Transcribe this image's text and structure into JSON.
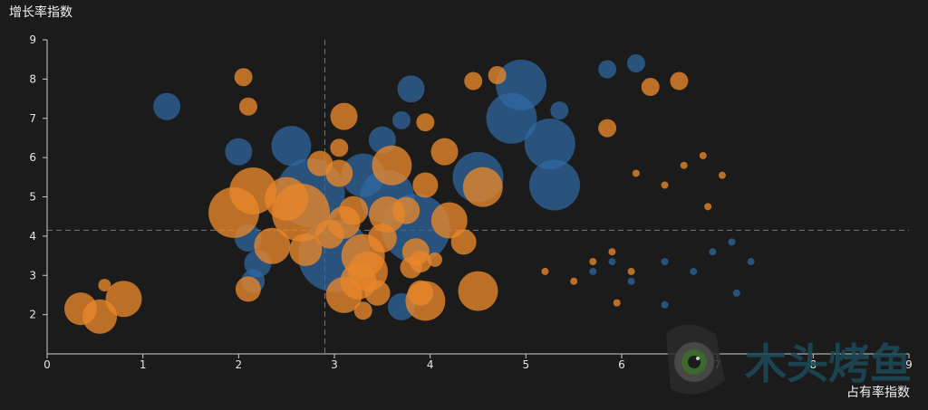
{
  "colors": {
    "background": "#1b1b1b",
    "axis": "#cccccc",
    "ref_line": "#777777",
    "blue": "#2f6aa3",
    "orange": "#e8862a"
  },
  "watermark": {
    "text": "木头烤鱼",
    "icon": "camera-logo-icon"
  },
  "chart_data": {
    "type": "scatter",
    "xlabel": "占有率指数",
    "ylabel": "增长率指数",
    "xlim": [
      0,
      9
    ],
    "ylim": [
      1,
      9
    ],
    "xticks": [
      0,
      1,
      2,
      3,
      4,
      5,
      6,
      7,
      8,
      9
    ],
    "yticks": [
      2,
      3,
      4,
      5,
      6,
      7,
      8,
      9
    ],
    "ref_x": 2.9,
    "ref_y": 4.15,
    "series": [
      {
        "color": "#2f6aa3",
        "points": [
          {
            "x": 1.25,
            "y": 7.3,
            "s": 15
          },
          {
            "x": 2.0,
            "y": 6.15,
            "s": 15
          },
          {
            "x": 2.55,
            "y": 6.3,
            "s": 22
          },
          {
            "x": 2.75,
            "y": 5.1,
            "s": 38
          },
          {
            "x": 3.0,
            "y": 3.5,
            "s": 40
          },
          {
            "x": 3.3,
            "y": 5.55,
            "s": 24
          },
          {
            "x": 3.55,
            "y": 5.0,
            "s": 30
          },
          {
            "x": 3.5,
            "y": 6.45,
            "s": 15
          },
          {
            "x": 3.8,
            "y": 7.75,
            "s": 15
          },
          {
            "x": 3.7,
            "y": 6.95,
            "s": 10
          },
          {
            "x": 3.85,
            "y": 4.2,
            "s": 38
          },
          {
            "x": 3.7,
            "y": 2.2,
            "s": 15
          },
          {
            "x": 2.1,
            "y": 3.95,
            "s": 15
          },
          {
            "x": 2.2,
            "y": 3.3,
            "s": 15
          },
          {
            "x": 2.15,
            "y": 2.85,
            "s": 13
          },
          {
            "x": 4.5,
            "y": 5.5,
            "s": 28
          },
          {
            "x": 4.95,
            "y": 7.85,
            "s": 28
          },
          {
            "x": 4.85,
            "y": 7.0,
            "s": 28
          },
          {
            "x": 5.25,
            "y": 6.35,
            "s": 28
          },
          {
            "x": 5.3,
            "y": 5.3,
            "s": 28
          },
          {
            "x": 5.35,
            "y": 7.2,
            "s": 10
          },
          {
            "x": 5.85,
            "y": 8.25,
            "s": 10
          },
          {
            "x": 6.15,
            "y": 8.4,
            "s": 10
          },
          {
            "x": 5.7,
            "y": 3.1,
            "s": 4
          },
          {
            "x": 5.9,
            "y": 3.35,
            "s": 4
          },
          {
            "x": 6.1,
            "y": 2.85,
            "s": 4
          },
          {
            "x": 6.45,
            "y": 3.35,
            "s": 4
          },
          {
            "x": 6.45,
            "y": 2.25,
            "s": 4
          },
          {
            "x": 6.75,
            "y": 3.1,
            "s": 4
          },
          {
            "x": 6.95,
            "y": 3.6,
            "s": 4
          },
          {
            "x": 7.15,
            "y": 3.85,
            "s": 4
          },
          {
            "x": 7.2,
            "y": 2.55,
            "s": 4
          },
          {
            "x": 7.35,
            "y": 3.35,
            "s": 4
          }
        ]
      },
      {
        "color": "#e8862a",
        "points": [
          {
            "x": 0.35,
            "y": 2.15,
            "s": 18
          },
          {
            "x": 0.55,
            "y": 1.95,
            "s": 19
          },
          {
            "x": 0.6,
            "y": 2.75,
            "s": 7
          },
          {
            "x": 0.8,
            "y": 2.4,
            "s": 20
          },
          {
            "x": 2.05,
            "y": 8.05,
            "s": 10
          },
          {
            "x": 2.1,
            "y": 7.3,
            "s": 10
          },
          {
            "x": 1.95,
            "y": 4.6,
            "s": 28
          },
          {
            "x": 2.15,
            "y": 5.15,
            "s": 26
          },
          {
            "x": 2.1,
            "y": 2.65,
            "s": 14
          },
          {
            "x": 2.35,
            "y": 3.75,
            "s": 20
          },
          {
            "x": 2.5,
            "y": 4.95,
            "s": 24
          },
          {
            "x": 2.65,
            "y": 4.6,
            "s": 32
          },
          {
            "x": 2.7,
            "y": 3.65,
            "s": 18
          },
          {
            "x": 2.85,
            "y": 5.85,
            "s": 14
          },
          {
            "x": 2.95,
            "y": 4.05,
            "s": 16
          },
          {
            "x": 3.1,
            "y": 7.05,
            "s": 15
          },
          {
            "x": 3.05,
            "y": 6.25,
            "s": 10
          },
          {
            "x": 3.05,
            "y": 5.6,
            "s": 15
          },
          {
            "x": 3.1,
            "y": 4.35,
            "s": 18
          },
          {
            "x": 3.2,
            "y": 4.65,
            "s": 16
          },
          {
            "x": 3.3,
            "y": 3.5,
            "s": 24
          },
          {
            "x": 3.1,
            "y": 2.5,
            "s": 20
          },
          {
            "x": 3.25,
            "y": 2.85,
            "s": 20
          },
          {
            "x": 3.35,
            "y": 3.1,
            "s": 22
          },
          {
            "x": 3.45,
            "y": 2.55,
            "s": 14
          },
          {
            "x": 3.3,
            "y": 2.1,
            "s": 10
          },
          {
            "x": 3.5,
            "y": 3.95,
            "s": 16
          },
          {
            "x": 3.55,
            "y": 4.55,
            "s": 20
          },
          {
            "x": 3.6,
            "y": 5.8,
            "s": 22
          },
          {
            "x": 3.75,
            "y": 4.65,
            "s": 15
          },
          {
            "x": 3.85,
            "y": 3.6,
            "s": 15
          },
          {
            "x": 3.8,
            "y": 3.2,
            "s": 12
          },
          {
            "x": 3.9,
            "y": 2.55,
            "s": 14
          },
          {
            "x": 3.95,
            "y": 2.35,
            "s": 22
          },
          {
            "x": 3.9,
            "y": 3.35,
            "s": 12
          },
          {
            "x": 3.95,
            "y": 5.3,
            "s": 14
          },
          {
            "x": 3.95,
            "y": 6.9,
            "s": 10
          },
          {
            "x": 4.05,
            "y": 3.4,
            "s": 8
          },
          {
            "x": 4.15,
            "y": 6.15,
            "s": 15
          },
          {
            "x": 4.2,
            "y": 4.4,
            "s": 20
          },
          {
            "x": 4.35,
            "y": 3.85,
            "s": 14
          },
          {
            "x": 4.45,
            "y": 7.95,
            "s": 10
          },
          {
            "x": 4.5,
            "y": 2.6,
            "s": 22
          },
          {
            "x": 4.55,
            "y": 5.25,
            "s": 22
          },
          {
            "x": 4.7,
            "y": 8.1,
            "s": 10
          },
          {
            "x": 5.85,
            "y": 6.75,
            "s": 10
          },
          {
            "x": 6.3,
            "y": 7.8,
            "s": 10
          },
          {
            "x": 6.6,
            "y": 7.95,
            "s": 10
          },
          {
            "x": 6.15,
            "y": 5.6,
            "s": 4
          },
          {
            "x": 6.45,
            "y": 5.3,
            "s": 4
          },
          {
            "x": 6.65,
            "y": 5.8,
            "s": 4
          },
          {
            "x": 6.85,
            "y": 6.05,
            "s": 4
          },
          {
            "x": 6.9,
            "y": 4.75,
            "s": 4
          },
          {
            "x": 7.05,
            "y": 5.55,
            "s": 4
          },
          {
            "x": 5.2,
            "y": 3.1,
            "s": 4
          },
          {
            "x": 5.5,
            "y": 2.85,
            "s": 4
          },
          {
            "x": 5.7,
            "y": 3.35,
            "s": 4
          },
          {
            "x": 5.9,
            "y": 3.6,
            "s": 4
          },
          {
            "x": 5.95,
            "y": 2.3,
            "s": 4
          },
          {
            "x": 6.1,
            "y": 3.1,
            "s": 4
          }
        ]
      }
    ]
  }
}
